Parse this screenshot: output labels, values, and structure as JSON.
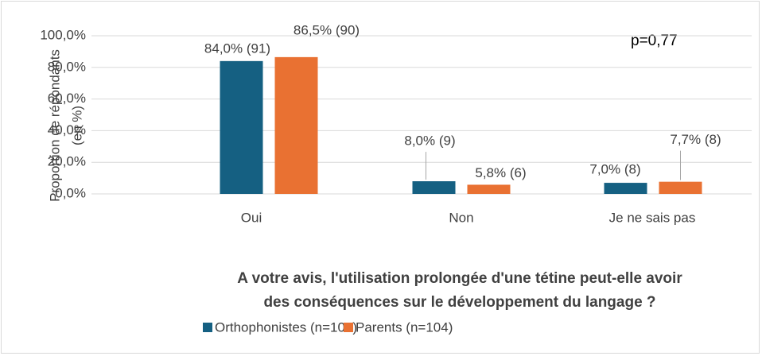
{
  "chart_data": {
    "type": "bar",
    "y_label": [
      "Proportion de répondants",
      "(en %)"
    ],
    "x_label": [
      "A votre avis, l'utilisation prolongée d'une tétine peut-elle avoir",
      "des conséquences sur le développement du langage ?"
    ],
    "annotation": "p=0,77",
    "categories": [
      "Oui",
      "Non",
      "Je ne sais pas"
    ],
    "series": [
      {
        "name": "Orthophonistes (n=108)",
        "color": "#156082",
        "values": [
          84.0,
          8.0,
          7.0
        ],
        "value_labels": [
          "84,0% (91)",
          "8,0% (9)",
          "7,0% (8)"
        ]
      },
      {
        "name": "Parents (n=104)",
        "color": "#e97132",
        "values": [
          86.5,
          5.8,
          7.7
        ],
        "value_labels": [
          "86,5% (90)",
          "5,8% (6)",
          "7,7% (8)"
        ]
      }
    ],
    "ylim": [
      0,
      100
    ],
    "yticks": [
      {
        "value": 0,
        "label": "0,0%"
      },
      {
        "value": 20,
        "label": "20,0%"
      },
      {
        "value": 40,
        "label": "40,0%"
      },
      {
        "value": 60,
        "label": "60,0%"
      },
      {
        "value": 80,
        "label": "80,0%"
      },
      {
        "value": 100,
        "label": "100,0%"
      }
    ],
    "grid": true,
    "legend": "bottom"
  }
}
